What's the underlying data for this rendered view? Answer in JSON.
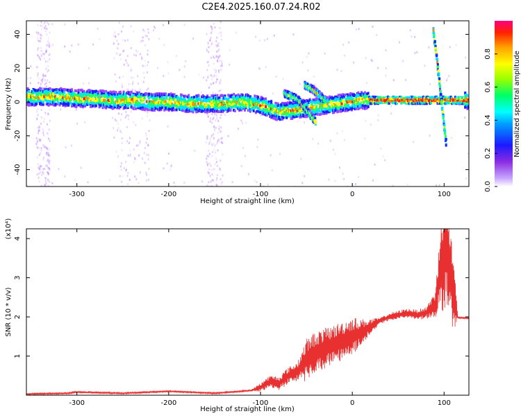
{
  "title": "C2E4.2025.160.07.24.R02",
  "colors": {
    "snr_line": "#e83030",
    "spectrum_low": "#b87aff",
    "spectrum_mid": "#1d49ff",
    "spectrum_high": "#ff2020",
    "background": "#ffffff"
  },
  "chart_data": [
    {
      "type": "heatmap",
      "xlabel": "Height of straight line (km)",
      "ylabel": "Frequency (Hz)",
      "xlim": [
        -355,
        127
      ],
      "ylim": [
        -50,
        48
      ],
      "xticks": [
        "-300",
        "-200",
        "-100",
        "0",
        "100"
      ],
      "xtick_values": [
        -300,
        -200,
        -100,
        0,
        100
      ],
      "yticks": [
        "40",
        "20",
        "0",
        "-20",
        "-40"
      ],
      "ytick_values": [
        40,
        20,
        0,
        -20,
        -40
      ],
      "colorbar": {
        "label": "Normalized spectral amplitude",
        "range": [
          0,
          1
        ],
        "ticks": [
          "0.0",
          "0.2",
          "0.4",
          "0.6",
          "0.8"
        ],
        "tick_values": [
          0,
          0.2,
          0.4,
          0.6,
          0.8
        ]
      },
      "ridge": {
        "x": [
          -350,
          -320,
          -300,
          -280,
          -260,
          -240,
          -220,
          -200,
          -180,
          -160,
          -140,
          -120,
          -100,
          -90,
          -80,
          10,
          40,
          80,
          120
        ],
        "y": [
          3,
          3,
          2,
          2,
          1,
          1,
          0,
          0,
          -1,
          -1,
          -1,
          0,
          -2,
          -4,
          -6,
          1,
          1,
          1,
          1
        ]
      },
      "branches": [
        {
          "x": [
            -75,
            -60,
            -50,
            -40
          ],
          "y": [
            5,
            2,
            -5,
            -12
          ]
        },
        {
          "x": [
            -52,
            -45,
            -38,
            -30
          ],
          "y": [
            10,
            8,
            5,
            1
          ]
        },
        {
          "x": [
            88,
            93,
            98,
            102
          ],
          "y": [
            42,
            20,
            -5,
            -25
          ]
        }
      ],
      "grid": false
    },
    {
      "type": "line",
      "xlabel": "Height of straight line (km)",
      "ylabel": "SNR (10 * v/v)",
      "y_multiplier": "(x10⁴)",
      "xlim": [
        -355,
        127
      ],
      "ylim": [
        0,
        4.25
      ],
      "xticks": [
        "-300",
        "-200",
        "-100",
        "0",
        "100"
      ],
      "xtick_values": [
        -300,
        -200,
        -100,
        0,
        100
      ],
      "yticks": [
        "1",
        "2",
        "3",
        "4"
      ],
      "ytick_values": [
        1,
        2,
        3,
        4
      ],
      "envelope": {
        "x": [
          -355,
          -310,
          -300,
          -250,
          -200,
          -150,
          -110,
          -100,
          -90,
          -80,
          -70,
          -60,
          -50,
          -40,
          -30,
          -20,
          -10,
          0,
          10,
          20,
          30,
          40,
          50,
          60,
          70,
          80,
          85,
          90,
          95,
          100,
          105,
          110,
          115,
          127
        ],
        "y": [
          0.03,
          0.05,
          0.08,
          0.05,
          0.1,
          0.05,
          0.12,
          0.2,
          0.35,
          0.3,
          0.5,
          0.6,
          0.9,
          1.1,
          1.2,
          1.3,
          1.4,
          1.5,
          1.6,
          1.75,
          1.9,
          2.0,
          2.05,
          2.1,
          2.05,
          2.1,
          2.2,
          2.3,
          3.0,
          3.8,
          3.5,
          2.6,
          1.98,
          1.97
        ]
      },
      "noise_amplitude": {
        "x": [
          -355,
          -110,
          -100,
          -60,
          -50,
          -20,
          0,
          20,
          30,
          80,
          90,
          100,
          110,
          115,
          127
        ],
        "y": [
          0.02,
          0.02,
          0.12,
          0.25,
          0.55,
          0.5,
          0.5,
          0.2,
          0.08,
          0.15,
          0.35,
          1.6,
          1.0,
          0.02,
          0.02
        ]
      },
      "series": [
        {
          "values_note": ""
        }
      ],
      "grid": false
    }
  ]
}
